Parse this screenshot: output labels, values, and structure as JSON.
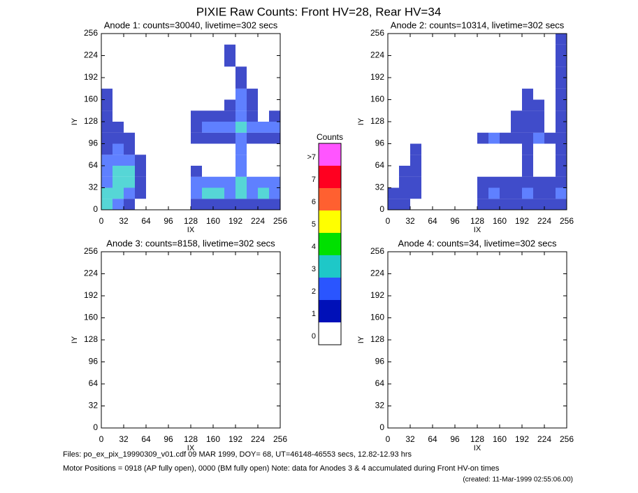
{
  "title": "PIXIE Raw Counts:  Front HV=28, Rear HV=34",
  "chart_data": [
    {
      "type": "heatmap",
      "title": "Anode 1: counts=30040, livetime=302 secs",
      "xlabel": "IX",
      "ylabel": "IY",
      "xlim": [
        0,
        256
      ],
      "ylim": [
        0,
        256
      ],
      "xticks": [
        0,
        32,
        64,
        96,
        128,
        160,
        192,
        224,
        256
      ],
      "yticks": [
        0,
        32,
        64,
        96,
        128,
        160,
        192,
        224,
        256
      ],
      "z": [
        [
          3,
          2,
          1,
          0,
          0,
          0,
          0,
          0,
          1,
          1,
          1,
          1,
          1,
          1,
          1,
          1
        ],
        [
          3,
          3,
          2,
          1,
          0,
          0,
          0,
          0,
          2,
          3,
          3,
          2,
          3,
          2,
          3,
          2
        ],
        [
          2,
          3,
          3,
          1,
          0,
          0,
          0,
          0,
          2,
          2,
          2,
          2,
          3,
          2,
          2,
          2
        ],
        [
          2,
          3,
          3,
          1,
          0,
          0,
          0,
          0,
          1,
          0,
          0,
          0,
          2,
          0,
          0,
          0
        ],
        [
          2,
          2,
          2,
          1,
          0,
          0,
          0,
          0,
          0,
          0,
          0,
          0,
          2,
          0,
          0,
          0
        ],
        [
          1,
          2,
          1,
          0,
          0,
          0,
          0,
          0,
          0,
          0,
          0,
          0,
          2,
          0,
          0,
          0
        ],
        [
          1,
          1,
          1,
          0,
          0,
          0,
          0,
          0,
          1,
          1,
          1,
          1,
          2,
          1,
          1,
          1
        ],
        [
          1,
          1,
          0,
          0,
          0,
          0,
          0,
          0,
          1,
          2,
          2,
          2,
          3,
          2,
          2,
          2
        ],
        [
          1,
          0,
          0,
          0,
          0,
          0,
          0,
          0,
          1,
          1,
          1,
          1,
          2,
          1,
          0,
          1
        ],
        [
          1,
          0,
          0,
          0,
          0,
          0,
          0,
          0,
          0,
          0,
          0,
          1,
          2,
          1,
          0,
          0
        ],
        [
          1,
          0,
          0,
          0,
          0,
          0,
          0,
          0,
          0,
          0,
          0,
          0,
          2,
          1,
          0,
          0
        ],
        [
          0,
          0,
          0,
          0,
          0,
          0,
          0,
          0,
          0,
          0,
          0,
          0,
          1,
          0,
          0,
          0
        ],
        [
          0,
          0,
          0,
          0,
          0,
          0,
          0,
          0,
          0,
          0,
          0,
          0,
          1,
          0,
          0,
          0
        ],
        [
          0,
          0,
          0,
          0,
          0,
          0,
          0,
          0,
          0,
          0,
          0,
          1,
          0,
          0,
          0,
          0
        ],
        [
          0,
          0,
          0,
          0,
          0,
          0,
          0,
          0,
          0,
          0,
          0,
          1,
          0,
          0,
          0,
          0
        ],
        [
          0,
          0,
          0,
          0,
          0,
          0,
          0,
          0,
          0,
          0,
          0,
          0,
          0,
          0,
          0,
          0
        ]
      ]
    },
    {
      "type": "heatmap",
      "title": "Anode 2: counts=10314, livetime=302 secs",
      "xlabel": "IX",
      "ylabel": "IY",
      "xlim": [
        0,
        256
      ],
      "ylim": [
        0,
        256
      ],
      "xticks": [
        0,
        32,
        64,
        96,
        128,
        160,
        192,
        224,
        256
      ],
      "yticks": [
        0,
        32,
        64,
        96,
        128,
        160,
        192,
        224,
        256
      ],
      "z": [
        [
          1,
          1,
          0,
          0,
          0,
          0,
          0,
          0,
          1,
          1,
          1,
          1,
          1,
          1,
          1,
          1
        ],
        [
          1,
          1,
          1,
          0,
          0,
          0,
          0,
          0,
          1,
          2,
          1,
          1,
          2,
          1,
          1,
          2
        ],
        [
          0,
          1,
          1,
          0,
          0,
          0,
          0,
          0,
          1,
          1,
          1,
          1,
          1,
          1,
          1,
          1
        ],
        [
          0,
          1,
          1,
          0,
          0,
          0,
          0,
          0,
          0,
          0,
          0,
          0,
          1,
          0,
          0,
          1
        ],
        [
          0,
          0,
          1,
          0,
          0,
          0,
          0,
          0,
          0,
          0,
          0,
          0,
          1,
          0,
          0,
          1
        ],
        [
          0,
          0,
          1,
          0,
          0,
          0,
          0,
          0,
          0,
          0,
          0,
          0,
          1,
          0,
          0,
          1
        ],
        [
          0,
          0,
          0,
          0,
          0,
          0,
          0,
          0,
          1,
          2,
          1,
          1,
          1,
          2,
          1,
          1
        ],
        [
          0,
          0,
          0,
          0,
          0,
          0,
          0,
          0,
          0,
          0,
          0,
          1,
          1,
          1,
          0,
          1
        ],
        [
          0,
          0,
          0,
          0,
          0,
          0,
          0,
          0,
          0,
          0,
          0,
          1,
          1,
          1,
          0,
          1
        ],
        [
          0,
          0,
          0,
          0,
          0,
          0,
          0,
          0,
          0,
          0,
          0,
          0,
          1,
          1,
          0,
          1
        ],
        [
          0,
          0,
          0,
          0,
          0,
          0,
          0,
          0,
          0,
          0,
          0,
          0,
          1,
          0,
          0,
          1
        ],
        [
          0,
          0,
          0,
          0,
          0,
          0,
          0,
          0,
          0,
          0,
          0,
          0,
          0,
          0,
          0,
          1
        ],
        [
          0,
          0,
          0,
          0,
          0,
          0,
          0,
          0,
          0,
          0,
          0,
          0,
          0,
          0,
          0,
          1
        ],
        [
          0,
          0,
          0,
          0,
          0,
          0,
          0,
          0,
          0,
          0,
          0,
          0,
          0,
          0,
          0,
          1
        ],
        [
          0,
          0,
          0,
          0,
          0,
          0,
          0,
          0,
          0,
          0,
          0,
          0,
          0,
          0,
          0,
          1
        ],
        [
          0,
          0,
          0,
          0,
          0,
          0,
          0,
          0,
          0,
          0,
          0,
          0,
          0,
          0,
          0,
          1
        ]
      ]
    },
    {
      "type": "heatmap",
      "title": "Anode 3: counts=8158, livetime=302 secs",
      "xlabel": "IX",
      "ylabel": "IY",
      "xlim": [
        0,
        256
      ],
      "ylim": [
        0,
        256
      ],
      "xticks": [
        0,
        32,
        64,
        96,
        128,
        160,
        192,
        224,
        256
      ],
      "yticks": [
        0,
        32,
        64,
        96,
        128,
        160,
        192,
        224,
        256
      ]
    },
    {
      "type": "heatmap",
      "title": "Anode 4: counts=34, livetime=302 secs",
      "xlabel": "IX",
      "ylabel": "IY",
      "xlim": [
        0,
        256
      ],
      "ylim": [
        0,
        256
      ],
      "xticks": [
        0,
        32,
        64,
        96,
        128,
        160,
        192,
        224,
        256
      ],
      "yticks": [
        0,
        32,
        64,
        96,
        128,
        160,
        192,
        224,
        256
      ]
    }
  ],
  "colorbar": {
    "title": "Counts",
    "levels": [
      0,
      1,
      2,
      3,
      4,
      5,
      6,
      7,
      {
        "value": 8,
        "label": ">7"
      }
    ],
    "colors": [
      "#ffffff",
      "#0010b8",
      "#2a55ff",
      "#1ec8c8",
      "#00e000",
      "#ffff00",
      "#ff6030",
      "#ff0020",
      "#ff55ff"
    ]
  },
  "footer": [
    "Files: po_ex_pix_19990309_v01.cdf    09 MAR 1999, DOY= 68, UT=46148-46553 secs, 12.82-12.93 hrs",
    "Motor Positions = 0918 (AP fully open), 0000 (BM fully open)    Note: data for Anodes 3 & 4 accumulated during Front HV-on times",
    "(created: 11-Mar-1999 02:55:06.00)"
  ]
}
